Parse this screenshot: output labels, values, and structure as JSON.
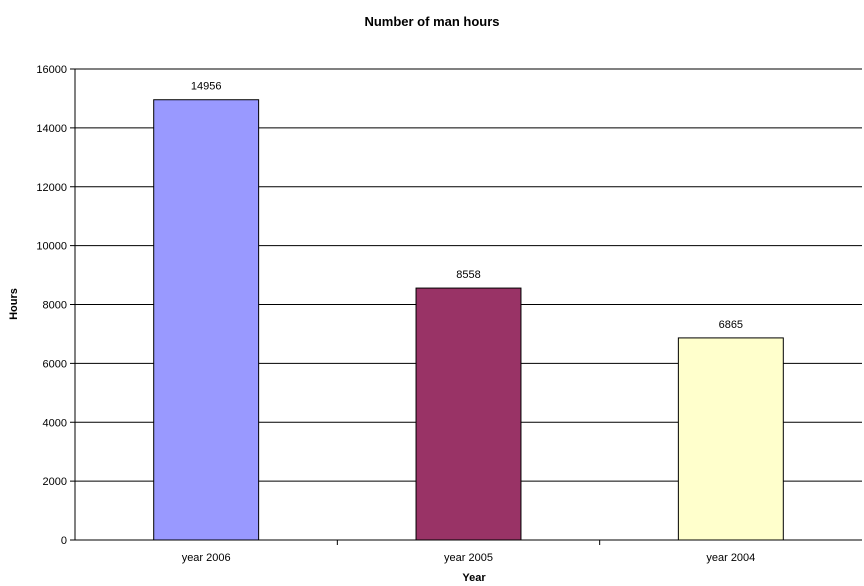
{
  "chart_data": {
    "type": "bar",
    "title": "Number of man hours",
    "xlabel": "Year",
    "ylabel": "Hours",
    "categories": [
      "year 2006",
      "year 2005",
      "year 2004"
    ],
    "values": [
      14956,
      8558,
      6865
    ],
    "data_labels": [
      "14956",
      "8558",
      "6865"
    ],
    "bar_colors": [
      "#9999FF",
      "#993366",
      "#FFFFCC"
    ],
    "ylim": [
      0,
      16000
    ],
    "yticks": [
      0,
      2000,
      4000,
      6000,
      8000,
      10000,
      12000,
      14000,
      16000
    ],
    "ytick_labels": [
      "0",
      "2000",
      "4000",
      "6000",
      "8000",
      "10000",
      "12000",
      "14000",
      "16000"
    ],
    "grid": true,
    "legend": "none"
  }
}
